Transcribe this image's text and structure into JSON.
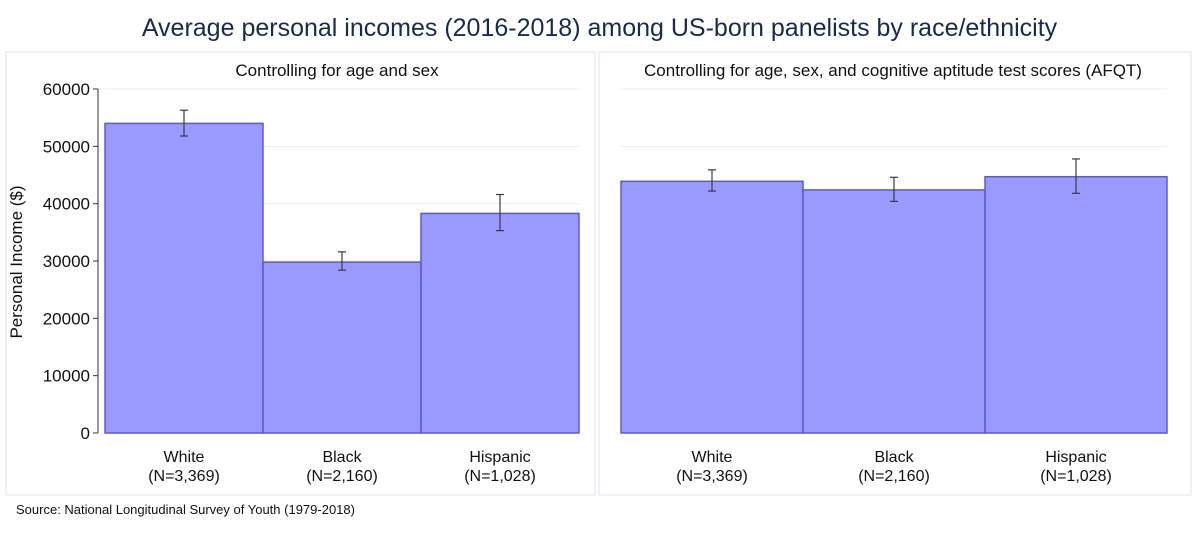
{
  "figure": {
    "title": "Average personal incomes (2016-2018) among US-born panelists by race/ethnicity",
    "source": "Source: National Longitudinal Survey of Youth (1979-2018)"
  },
  "colors": {
    "bar_fill": "#9999ff",
    "bar_stroke": "#5b5bcf",
    "error_bar": "#3a3a3a",
    "title": "#1a2a4a",
    "panel_border": "#dde6ee",
    "grid": "#e8edf2",
    "axis": "#333333"
  },
  "chart_data": [
    {
      "type": "bar",
      "title": "Controlling for age and sex",
      "ylabel": "Personal Income ($)",
      "ylim": [
        0,
        60000
      ],
      "yticks": [
        0,
        10000,
        20000,
        30000,
        40000,
        50000,
        60000
      ],
      "ytick_labels": [
        "0",
        "10000",
        "20000",
        "30000",
        "40000",
        "50000",
        "60000"
      ],
      "grid": true,
      "categories": [
        "White",
        "Black",
        "Hispanic"
      ],
      "category_n": [
        "(N=3,369)",
        "(N=2,160)",
        "(N=1,028)"
      ],
      "values": [
        54000,
        29800,
        38300
      ],
      "error_low": [
        51800,
        28400,
        35300
      ],
      "error_high": [
        56300,
        31600,
        41600
      ]
    },
    {
      "type": "bar",
      "title": "Controlling for age, sex, and cognitive aptitude test scores (AFQT)",
      "ylim": [
        0,
        60000
      ],
      "grid": true,
      "categories": [
        "White",
        "Black",
        "Hispanic"
      ],
      "category_n": [
        "(N=3,369)",
        "(N=2,160)",
        "(N=1,028)"
      ],
      "values": [
        43900,
        42400,
        44700
      ],
      "error_low": [
        42200,
        40400,
        41800
      ],
      "error_high": [
        45900,
        44600,
        47800
      ]
    }
  ]
}
